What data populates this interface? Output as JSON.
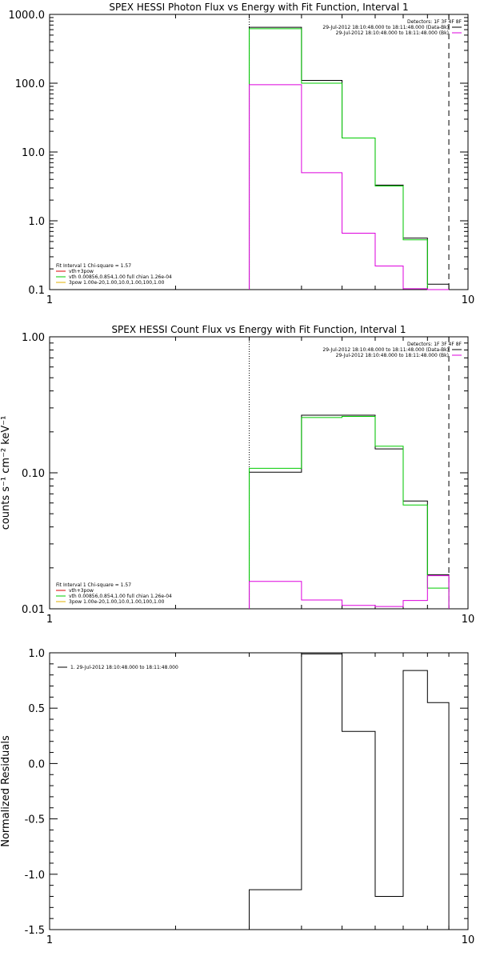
{
  "chart_data": [
    {
      "type": "line",
      "step": true,
      "title": "SPEX HESSI Photon Flux vs Energy with Fit Function, Interval 1",
      "xlabel": "",
      "ylabel": "",
      "xscale": "log",
      "yscale": "log",
      "xlim": [
        1,
        10
      ],
      "ylim": [
        0.1,
        1000
      ],
      "x_tick_labels": [
        "1",
        "10"
      ],
      "y_tick_labels": [
        "0.1",
        "1.0",
        "10.0",
        "100.0",
        "1000.0"
      ],
      "y_tick_values": [
        0.1,
        1,
        10,
        100,
        1000
      ],
      "bin_edges": [
        3,
        4,
        5,
        6,
        7,
        8,
        9
      ],
      "vlines": [
        {
          "x": 3,
          "style": "dotted",
          "color": "#000000"
        },
        {
          "x": 9,
          "style": "dashed",
          "color": "#000000"
        }
      ],
      "series": [
        {
          "label": "",
          "color": "#000000",
          "values": [
            650,
            110,
            16,
            3.3,
            0.56,
            0.12
          ]
        },
        {
          "label": "",
          "color": "#00cc00",
          "values": [
            620,
            100,
            16,
            3.2,
            0.53,
            0.1
          ]
        },
        {
          "label": "",
          "color": "#dd00dd",
          "values": [
            95,
            5,
            0.66,
            0.22,
            0.103,
            0.1
          ]
        }
      ],
      "legend_top_right": [
        {
          "text": "Detectors: 1F 3F 4F 8F",
          "color": ""
        },
        {
          "text": "29-Jul-2012 18:10:48.000 to 18:11:48.000 (Data-Bk)",
          "color": "#000000"
        },
        {
          "text": "29-Jul-2012 18:10:48.000 to 18:11:48.000 (Bk)",
          "color": "#dd00dd"
        }
      ],
      "legend_bottom_left": [
        {
          "text": "Fit Interval 1    Chi-square = 1.57",
          "color": ""
        },
        {
          "text": "vth+3pow",
          "color": "#dd0000"
        },
        {
          "text": "vth 0.00856,0.854,1.00   full chian 1.26e-04",
          "color": "#00cc00"
        },
        {
          "text": "3pow 1.00e-20,1.00,10.0,1.00,100,1.00",
          "color": "#e0b000"
        }
      ]
    },
    {
      "type": "line",
      "step": true,
      "title": "SPEX HESSI Count Flux vs Energy with Fit Function, Interval 1",
      "xlabel": "",
      "ylabel": "counts s⁻¹ cm⁻² keV⁻¹",
      "xscale": "log",
      "yscale": "log",
      "xlim": [
        1,
        10
      ],
      "ylim": [
        0.01,
        1
      ],
      "x_tick_labels": [
        "1",
        "10"
      ],
      "y_tick_labels": [
        "0.01",
        "0.10",
        "1.00"
      ],
      "y_tick_values": [
        0.01,
        0.1,
        1
      ],
      "bin_edges": [
        3,
        4,
        5,
        6,
        7,
        8,
        9
      ],
      "vlines": [
        {
          "x": 3,
          "style": "dotted",
          "color": "#000000"
        },
        {
          "x": 9,
          "style": "dashed",
          "color": "#000000"
        }
      ],
      "series": [
        {
          "label": "",
          "color": "#000000",
          "values": [
            0.101,
            0.265,
            0.265,
            0.15,
            0.062,
            0.0178
          ]
        },
        {
          "label": "",
          "color": "#00cc00",
          "values": [
            0.108,
            0.255,
            0.26,
            0.157,
            0.058,
            0.0142
          ]
        },
        {
          "label": "",
          "color": "#dd00dd",
          "values": [
            0.0159,
            0.0116,
            0.0106,
            0.0104,
            0.0115,
            0.0175
          ]
        }
      ],
      "legend_top_right": [
        {
          "text": "Detectors: 1F 3F 4F 8F",
          "color": ""
        },
        {
          "text": "29-Jul-2012 18:10:48.000 to 18:11:48.000 (Data-Bk)",
          "color": "#000000"
        },
        {
          "text": "29-Jul-2012 18:10:48.000 to 18:11:48.000 (Bk)",
          "color": "#dd00dd"
        }
      ],
      "legend_bottom_left": [
        {
          "text": "Fit Interval 1    Chi-square = 1.57",
          "color": ""
        },
        {
          "text": "vth+3pow",
          "color": "#dd0000"
        },
        {
          "text": "vth 0.00856,0.854,1.00   full chian 1.26e-04",
          "color": "#00cc00"
        },
        {
          "text": "3pow 1.00e-20,1.00,10.0,1.00,100,1.00",
          "color": "#e0b000"
        }
      ]
    },
    {
      "type": "line",
      "step": true,
      "title": "",
      "xlabel": "",
      "ylabel": "Normalized Residuals",
      "xscale": "log",
      "yscale": "linear",
      "xlim": [
        1,
        10
      ],
      "ylim": [
        -1.5,
        1.0
      ],
      "x_tick_labels": [
        "1",
        "10"
      ],
      "y_tick_labels": [
        "-1.5",
        "-1.0",
        "-0.5",
        "0.0",
        "0.5",
        "1.0"
      ],
      "y_tick_values": [
        -1.5,
        -1.0,
        -0.5,
        0.0,
        0.5,
        1.0
      ],
      "bin_edges": [
        3,
        4,
        5,
        6,
        7,
        8,
        9
      ],
      "vlines": [],
      "series": [
        {
          "label": "1. 29-Jul-2012 18:10:48.000 to 18:11:48.000",
          "color": "#000000",
          "values": [
            -1.14,
            0.99,
            0.29,
            -1.2,
            0.84,
            0.55
          ]
        }
      ],
      "legend_top_left": [
        {
          "text": "1. 29-Jul-2012 18:10:48.000 to 18:11:48.000",
          "color": "#000000"
        }
      ]
    }
  ]
}
